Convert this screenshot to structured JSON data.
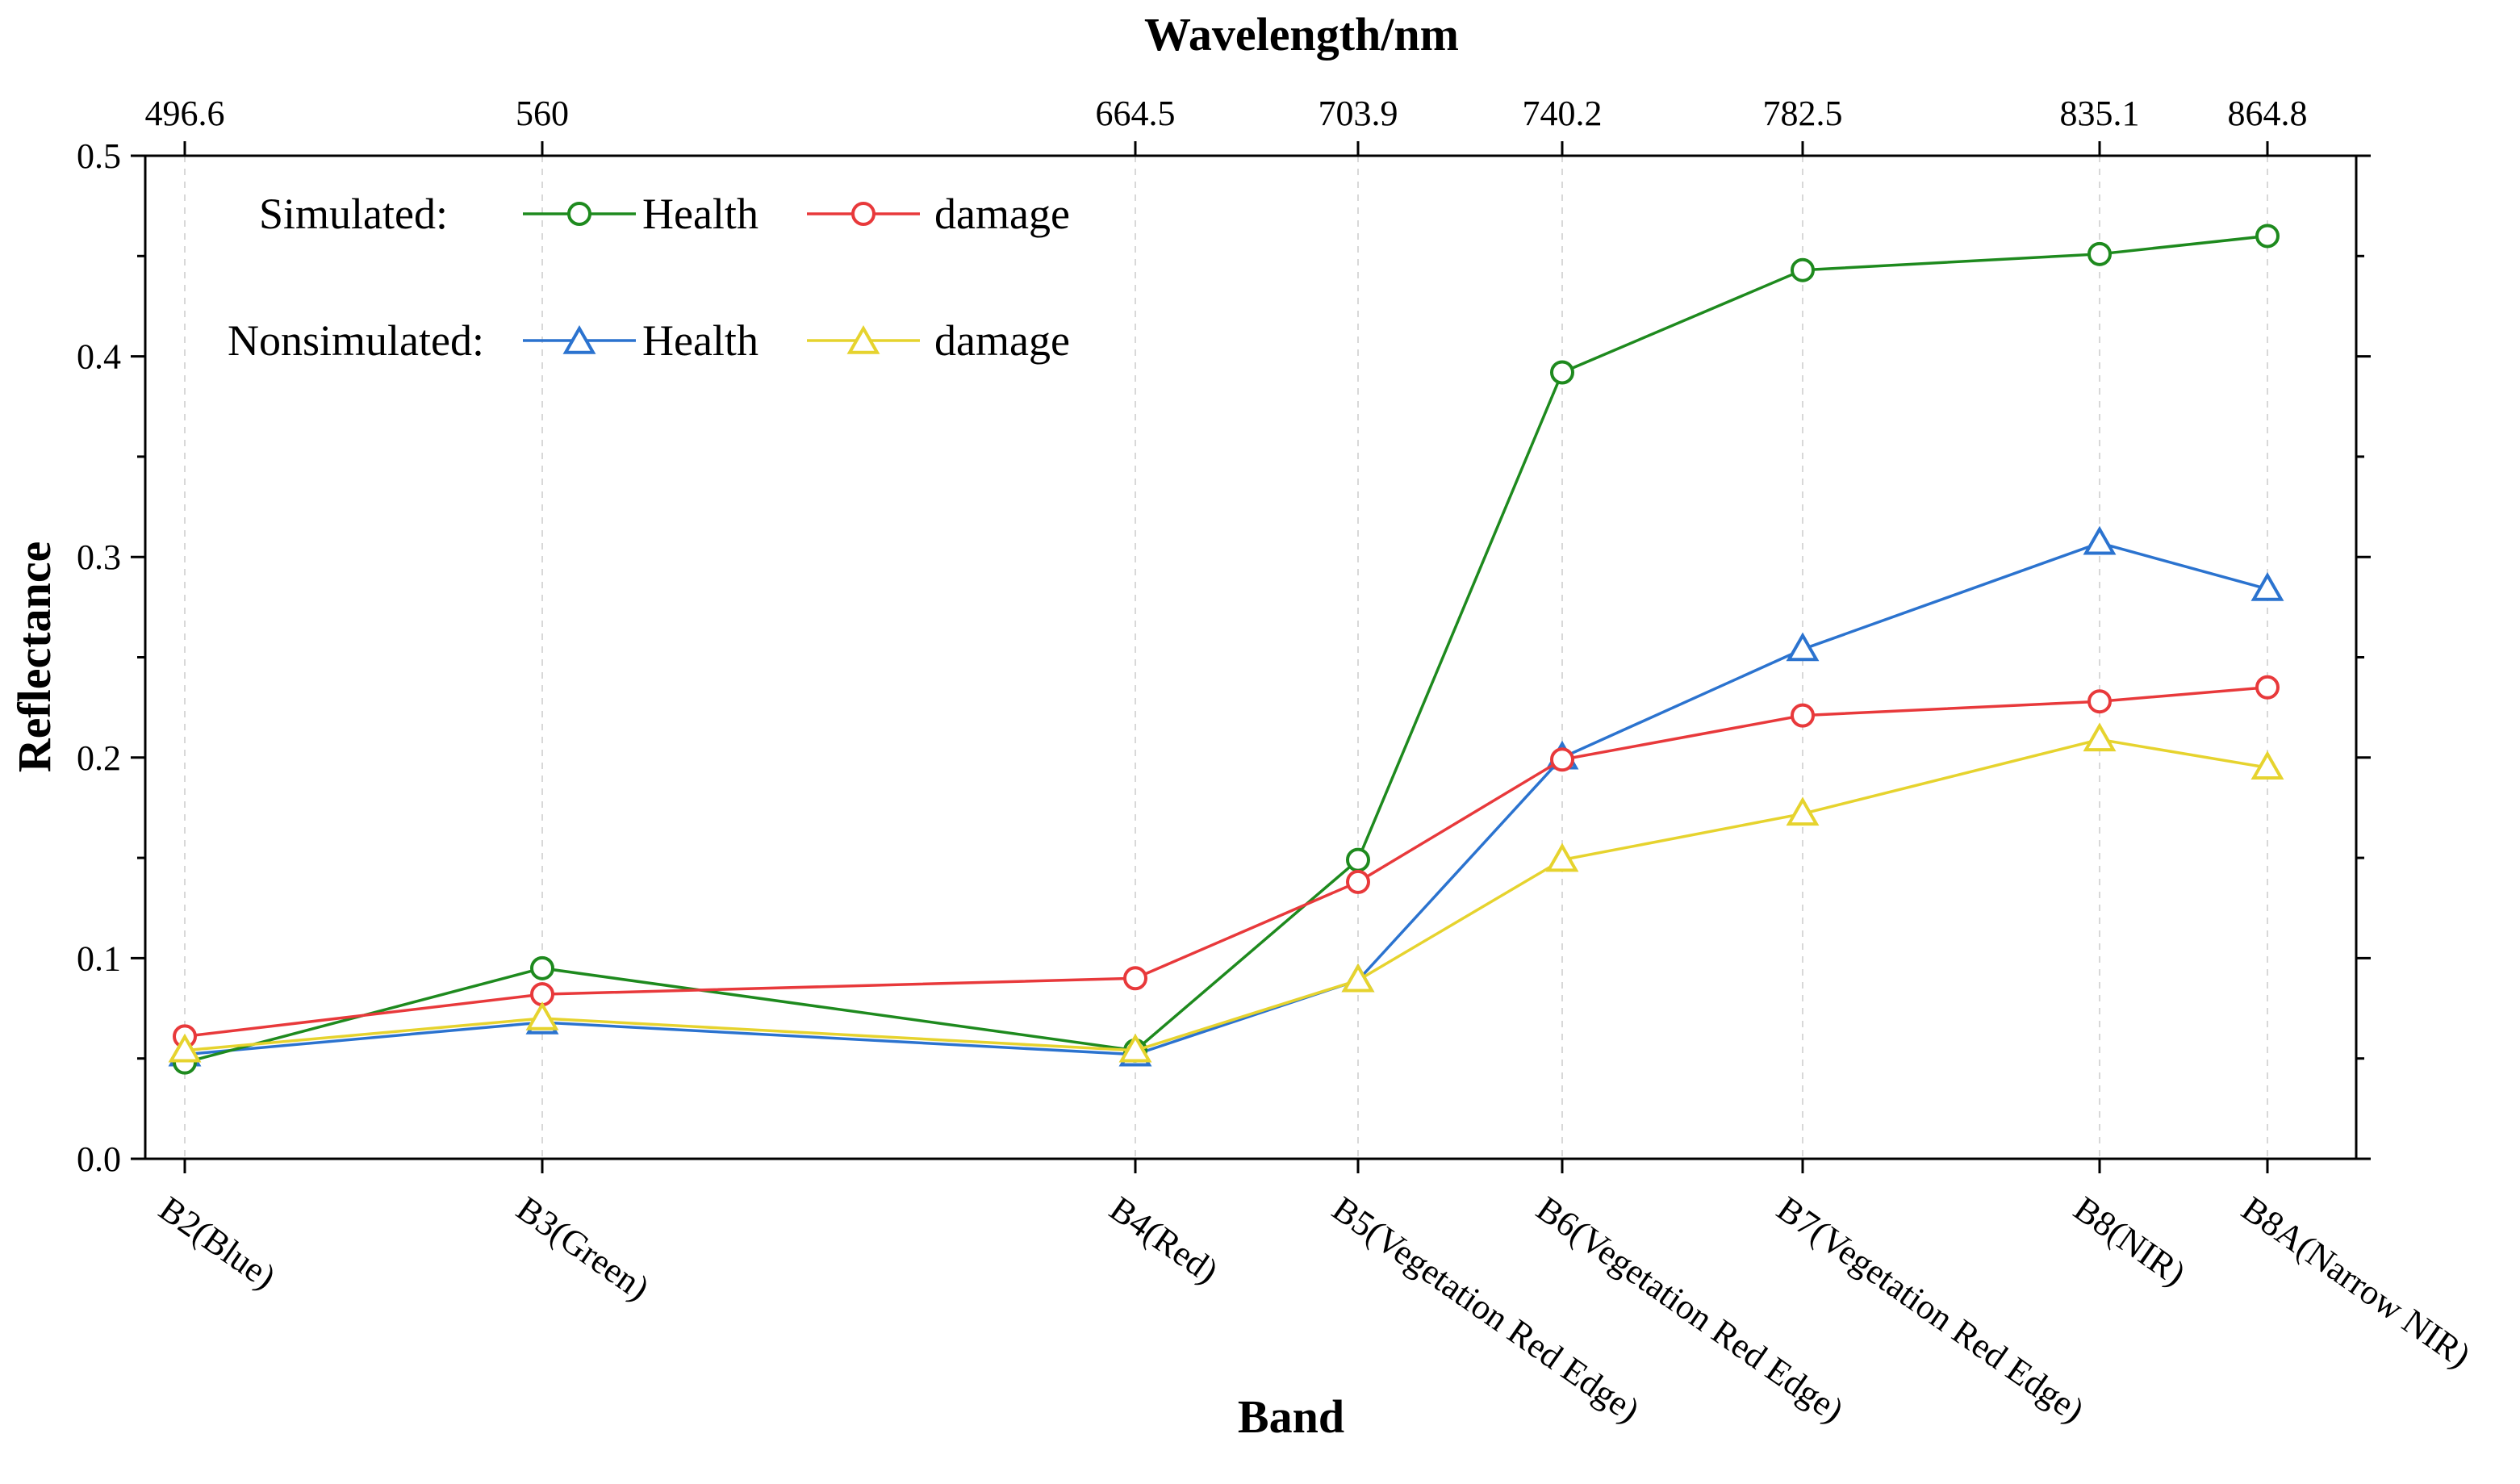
{
  "chart_data": {
    "type": "line",
    "top_axis": {
      "title": "Wavelength/nm",
      "tick_labels": [
        "496.6",
        "560",
        "664.5",
        "703.9",
        "740.2",
        "782.5",
        "835.1",
        "864.8"
      ]
    },
    "xlabel": "Band",
    "ylabel": "Reflectance",
    "ylim": [
      0.0,
      0.5
    ],
    "y_ticks": [
      "0.0",
      "0.1",
      "0.2",
      "0.3",
      "0.4",
      "0.5"
    ],
    "y_tick_values": [
      0.0,
      0.1,
      0.2,
      0.3,
      0.4,
      0.5
    ],
    "wavelengths": [
      496.6,
      560,
      664.5,
      703.9,
      740.2,
      782.5,
      835.1,
      864.8
    ],
    "categories": [
      "B2(Blue)",
      "B3(Green)",
      "B4(Red)",
      "B5(Vegetation Red Edge)",
      "B6(Vegetation Red Edge)",
      "B7(Vegetation Red Edge)",
      "B8(NIR)",
      "B8A(Narrow NIR)"
    ],
    "grid": "vertical dashed at each band",
    "series": [
      {
        "group": "Simulated",
        "name": "Health",
        "marker": "circle",
        "color": "#1e8a1e",
        "values": [
          0.048,
          0.095,
          0.054,
          0.149,
          0.392,
          0.443,
          0.451,
          0.46
        ]
      },
      {
        "group": "Simulated",
        "name": "damage",
        "marker": "circle",
        "color": "#e8393b",
        "values": [
          0.061,
          0.082,
          0.09,
          0.138,
          0.199,
          0.221,
          0.228,
          0.235
        ]
      },
      {
        "group": "Nonsimulated",
        "name": "Health",
        "marker": "triangle",
        "color": "#2b73cf",
        "values": [
          0.052,
          0.068,
          0.052,
          0.089,
          0.2,
          0.254,
          0.307,
          0.284
        ]
      },
      {
        "group": "Nonsimulated",
        "name": "damage",
        "marker": "triangle",
        "color": "#e6d32e",
        "values": [
          0.054,
          0.07,
          0.054,
          0.089,
          0.149,
          0.172,
          0.209,
          0.195
        ]
      }
    ],
    "legend": {
      "position": "top-left",
      "group_labels": [
        "Simulated:",
        "Nonsimulated:"
      ]
    }
  }
}
